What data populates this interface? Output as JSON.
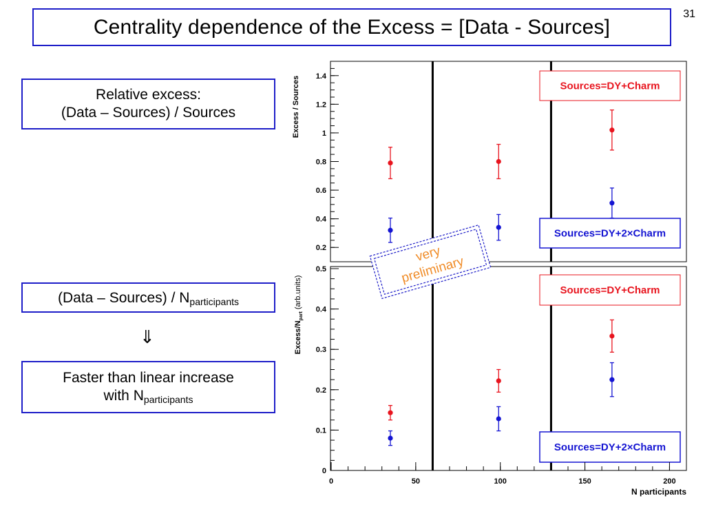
{
  "slide": {
    "number": "31",
    "title": "Centrality dependence of the Excess = [Data - Sources]",
    "box1_line1": "Relative excess:",
    "box1_line2": "(Data – Sources) / Sources",
    "box2_main": "(Data – Sources) / N",
    "box2_sub": "participants",
    "arrow": "⇓",
    "box3_line1": "Faster than linear increase",
    "box3_line2_main": "with N",
    "box3_line2_sub": "participants"
  },
  "stamp": {
    "line1": "very",
    "line2": "preliminary",
    "color": "#f08c28"
  },
  "chart_data": [
    {
      "type": "scatter",
      "ylabel": "Excess / Sources",
      "ylim": [
        0.1,
        1.5
      ],
      "xlim": [
        0,
        210
      ],
      "yticks": [
        0.2,
        0.4,
        0.6,
        0.8,
        1,
        1.2,
        1.4
      ],
      "ytick_labels": [
        "0.2",
        "0.4",
        "0.6",
        "0.8",
        "1",
        "1.2",
        "1.4"
      ],
      "vlines": [
        60,
        130
      ],
      "series": [
        {
          "name": "Sources=DY+Charm",
          "color": "#e8141e",
          "points": [
            {
              "x": 35,
              "y": 0.79,
              "err": 0.11
            },
            {
              "x": 99,
              "y": 0.8,
              "err": 0.12
            },
            {
              "x": 166,
              "y": 1.02,
              "err": 0.14
            }
          ]
        },
        {
          "name": "Sources=DY+2×Charm",
          "color": "#1414d2",
          "points": [
            {
              "x": 35,
              "y": 0.32,
              "err": 0.085
            },
            {
              "x": 99,
              "y": 0.34,
              "err": 0.09
            },
            {
              "x": 166,
              "y": 0.51,
              "err": 0.105
            }
          ]
        }
      ]
    },
    {
      "type": "scatter",
      "ylabel_main": "Excess/N",
      "ylabel_sub": "part",
      "ylabel_unit": "(arb.units)",
      "xlabel_main": "N",
      "xlabel_sub": "participants",
      "ylim": [
        0,
        0.5
      ],
      "xlim": [
        0,
        210
      ],
      "yticks": [
        0,
        0.1,
        0.2,
        0.3,
        0.4,
        0.5
      ],
      "ytick_labels": [
        "0",
        "0.1",
        "0.2",
        "0.3",
        "0.4",
        "0.5"
      ],
      "xticks": [
        0,
        50,
        100,
        150,
        200
      ],
      "xtick_labels": [
        "0",
        "50",
        "100",
        "150",
        "200"
      ],
      "vlines": [
        60,
        130
      ],
      "series": [
        {
          "name": "Sources=DY+Charm",
          "color": "#e8141e",
          "points": [
            {
              "x": 35,
              "y": 0.143,
              "err": 0.018
            },
            {
              "x": 99,
              "y": 0.222,
              "err": 0.028
            },
            {
              "x": 166,
              "y": 0.333,
              "err": 0.04
            }
          ]
        },
        {
          "name": "Sources=DY+2×Charm",
          "color": "#1414d2",
          "points": [
            {
              "x": 35,
              "y": 0.08,
              "err": 0.018
            },
            {
              "x": 99,
              "y": 0.128,
              "err": 0.03
            },
            {
              "x": 166,
              "y": 0.225,
              "err": 0.042
            }
          ]
        }
      ]
    }
  ]
}
